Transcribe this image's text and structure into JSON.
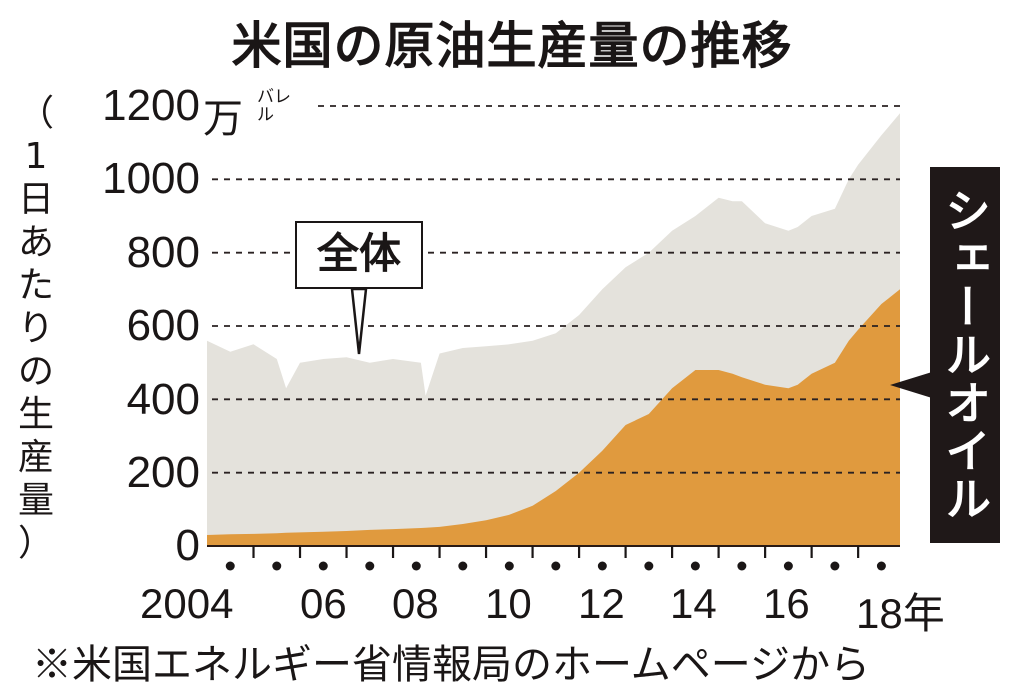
{
  "title": "米国の原油生産量の推移",
  "y_axis": {
    "label_chars": [
      "（",
      "1",
      "日",
      "あ",
      "た",
      "り",
      "の",
      "生",
      "産",
      "量",
      "）"
    ],
    "label": "（1日あたりの生産量）",
    "unit_main": "万",
    "unit_sub": "バレル",
    "ticks": [
      "1200",
      "1000",
      "800",
      "600",
      "400",
      "200",
      "0"
    ]
  },
  "x_axis": {
    "ticks": [
      "2004",
      "06",
      "08",
      "10",
      "12",
      "14",
      "16",
      "18年"
    ]
  },
  "annotations": {
    "total": "全体",
    "shale": "シェールオイル"
  },
  "source": "※米国エネルギー省情報局のホームページから",
  "colors": {
    "total_fill": "#e4e2dc",
    "shale_fill": "#e09a3e",
    "axis": "#2a1a14",
    "label_bg": "#1f1818"
  },
  "chart_data": {
    "type": "area",
    "title": "米国の原油生産量の推移",
    "xlabel": "年",
    "ylabel": "1日あたりの生産量（万バレル）",
    "ylim": [
      0,
      1200
    ],
    "grid": "horizontal dashed",
    "x": [
      2004.0,
      2004.5,
      2005.0,
      2005.5,
      2005.7,
      2006.0,
      2006.5,
      2007.0,
      2007.5,
      2008.0,
      2008.6,
      2008.7,
      2009.0,
      2009.5,
      2010.0,
      2010.5,
      2011.0,
      2011.5,
      2012.0,
      2012.5,
      2013.0,
      2013.5,
      2014.0,
      2014.5,
      2015.0,
      2015.3,
      2015.5,
      2016.0,
      2016.5,
      2016.7,
      2017.0,
      2017.5,
      2017.8,
      2018.0,
      2018.5,
      2018.9
    ],
    "categories": [
      "2004",
      "06",
      "08",
      "10",
      "12",
      "14",
      "16",
      "18"
    ],
    "series": [
      {
        "name": "全体",
        "values": [
          560,
          530,
          550,
          510,
          430,
          500,
          510,
          515,
          500,
          510,
          500,
          410,
          525,
          540,
          545,
          550,
          560,
          580,
          630,
          700,
          760,
          800,
          860,
          900,
          950,
          940,
          940,
          880,
          860,
          870,
          900,
          920,
          1000,
          1040,
          1120,
          1180
        ]
      },
      {
        "name": "シェールオイル",
        "values": [
          30,
          32,
          33,
          35,
          36,
          37,
          39,
          41,
          44,
          46,
          49,
          50,
          52,
          60,
          70,
          85,
          110,
          150,
          200,
          260,
          330,
          360,
          430,
          480,
          480,
          470,
          460,
          440,
          430,
          440,
          470,
          500,
          560,
          590,
          660,
          700
        ]
      }
    ]
  }
}
